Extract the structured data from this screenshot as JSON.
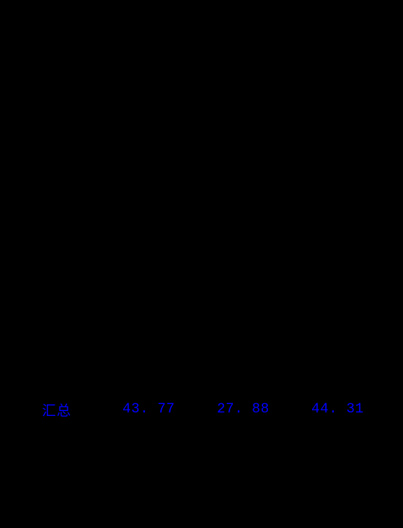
{
  "summary": {
    "label": "汇总",
    "values": [
      "43. 77",
      "27. 88",
      "44. 31"
    ],
    "text_color": "#0000ff",
    "background_color": "#000000",
    "font_size": 20,
    "font_family": "SimSun"
  }
}
